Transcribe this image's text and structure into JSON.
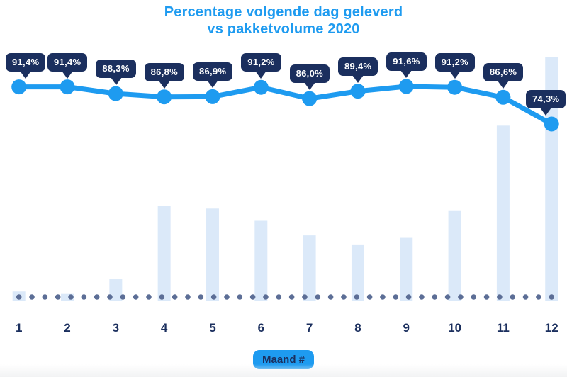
{
  "title": {
    "line1": "Percentage volgende dag geleverd",
    "line2": "vs pakketvolume 2020"
  },
  "x_axis": {
    "badge_label": "Maand #",
    "categories": [
      "1",
      "2",
      "3",
      "4",
      "5",
      "6",
      "7",
      "8",
      "9",
      "10",
      "11",
      "12"
    ]
  },
  "colors": {
    "accent_blue": "#1E9BF0",
    "navy": "#1B2F5E",
    "bar_fill": "#DBE9F9",
    "baseline_dot": "#5C6E96",
    "label_text": "#FFFFFF",
    "background": "#FFFFFF"
  },
  "chart_data": {
    "type": "line+bar",
    "title": "Percentage volgende dag geleverd vs pakketvolume 2020",
    "categories": [
      "1",
      "2",
      "3",
      "4",
      "5",
      "6",
      "7",
      "8",
      "9",
      "10",
      "11",
      "12"
    ],
    "series": [
      {
        "name": "Percentage volgende dag geleverd",
        "type": "line",
        "unit": "%",
        "values": [
          91.4,
          91.4,
          88.3,
          86.8,
          86.9,
          91.2,
          86.0,
          89.4,
          91.6,
          91.2,
          86.6,
          74.3
        ],
        "labels": [
          "91,4%",
          "91,4%",
          "88,3%",
          "86,8%",
          "86,9%",
          "91,2%",
          "86,0%",
          "89,4%",
          "91,6%",
          "91,2%",
          "86,6%",
          "74,3%"
        ]
      },
      {
        "name": "Pakketvolume 2020",
        "type": "bar",
        "unit": "relative",
        "values": [
          4,
          3,
          9,
          39,
          38,
          33,
          27,
          23,
          26,
          37,
          72,
          100
        ]
      }
    ],
    "xlabel": "Maand #",
    "ylabel": "",
    "legend": "none",
    "grid": "off",
    "baseline_style": "dotted"
  }
}
